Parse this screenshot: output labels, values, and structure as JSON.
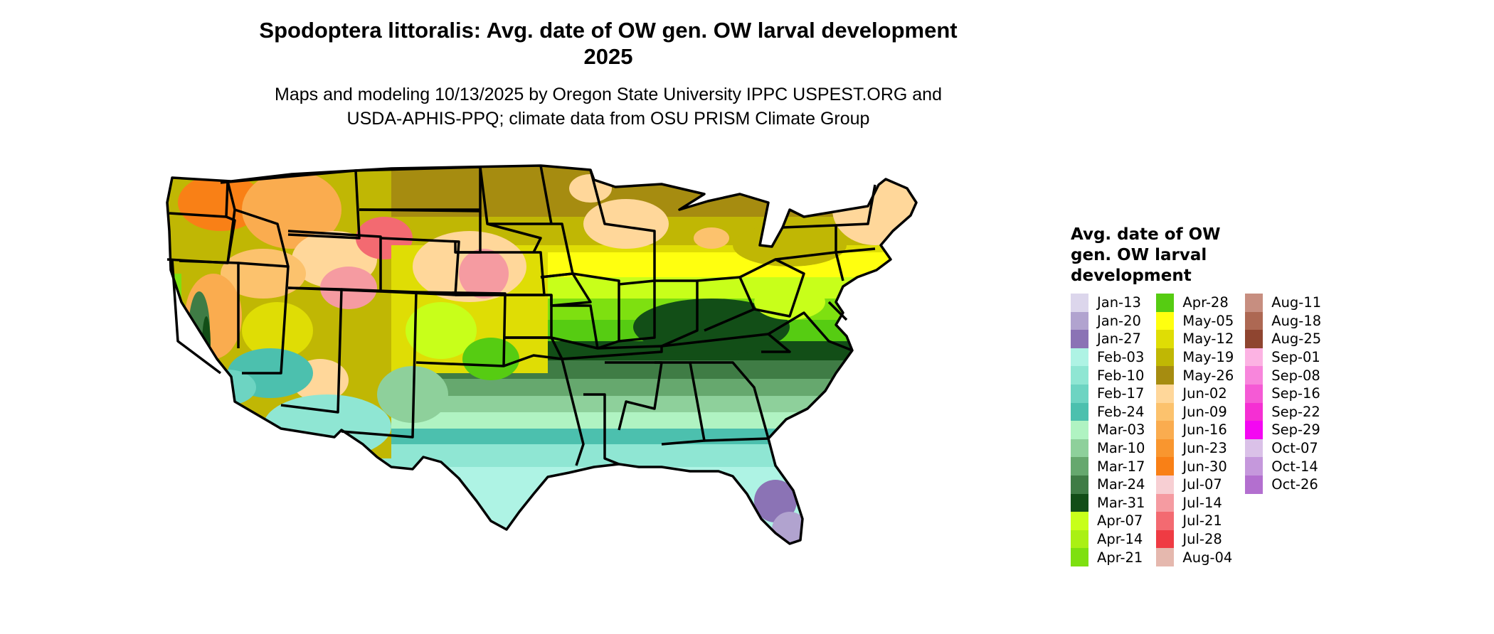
{
  "title": "Spodoptera littoralis: Avg. date of OW gen. OW larval development",
  "year": "2025",
  "subtitle_line1": "Maps and modeling 10/13/2025 by Oregon State University IPPC USPEST.ORG and",
  "subtitle_line2": "USDA-APHIS-PPQ; climate data from OSU PRISM Climate Group",
  "legend": {
    "title": "Avg. date of OW gen. OW larval development",
    "items": [
      {
        "label": "Jan-13",
        "color": "#dcd6ec"
      },
      {
        "label": "Jan-20",
        "color": "#b1a3cf"
      },
      {
        "label": "Jan-27",
        "color": "#8b73b5"
      },
      {
        "label": "Feb-03",
        "color": "#aef3e4"
      },
      {
        "label": "Feb-10",
        "color": "#8fe6d3"
      },
      {
        "label": "Feb-17",
        "color": "#6dd4c2"
      },
      {
        "label": "Feb-24",
        "color": "#4cc0ae"
      },
      {
        "label": "Mar-03",
        "color": "#b0f3c2"
      },
      {
        "label": "Mar-10",
        "color": "#8ed09b"
      },
      {
        "label": "Mar-17",
        "color": "#66a86e"
      },
      {
        "label": "Mar-24",
        "color": "#3f7c45"
      },
      {
        "label": "Mar-31",
        "color": "#124e17"
      },
      {
        "label": "Apr-07",
        "color": "#c8ff1a"
      },
      {
        "label": "Apr-14",
        "color": "#aaf014"
      },
      {
        "label": "Apr-21",
        "color": "#7ee010"
      },
      {
        "label": "Apr-28",
        "color": "#56cc12"
      },
      {
        "label": "May-05",
        "color": "#ffff0f"
      },
      {
        "label": "May-12",
        "color": "#dfdd05"
      },
      {
        "label": "May-19",
        "color": "#c0b704"
      },
      {
        "label": "May-26",
        "color": "#a68c10"
      },
      {
        "label": "Jun-02",
        "color": "#ffd79a"
      },
      {
        "label": "Jun-09",
        "color": "#fcc26d"
      },
      {
        "label": "Jun-16",
        "color": "#faac4f"
      },
      {
        "label": "Jun-23",
        "color": "#f9962f"
      },
      {
        "label": "Jun-30",
        "color": "#f98016"
      },
      {
        "label": "Jul-07",
        "color": "#f7cfd3"
      },
      {
        "label": "Jul-14",
        "color": "#f59ba1"
      },
      {
        "label": "Jul-21",
        "color": "#f36a71"
      },
      {
        "label": "Jul-28",
        "color": "#ef3b43"
      },
      {
        "label": "Aug-04",
        "color": "#e5b8ae"
      },
      {
        "label": "Aug-11",
        "color": "#c78e80"
      },
      {
        "label": "Aug-18",
        "color": "#ad6853"
      },
      {
        "label": "Aug-25",
        "color": "#8f4530"
      },
      {
        "label": "Sep-01",
        "color": "#fcb3e3"
      },
      {
        "label": "Sep-08",
        "color": "#f886dc"
      },
      {
        "label": "Sep-16",
        "color": "#f55ad5"
      },
      {
        "label": "Sep-22",
        "color": "#f52fd3"
      },
      {
        "label": "Sep-29",
        "color": "#f407f2"
      },
      {
        "label": "Oct-07",
        "color": "#dac1e8"
      },
      {
        "label": "Oct-14",
        "color": "#c598dc"
      },
      {
        "label": "Oct-26",
        "color": "#b36fcf"
      }
    ]
  }
}
